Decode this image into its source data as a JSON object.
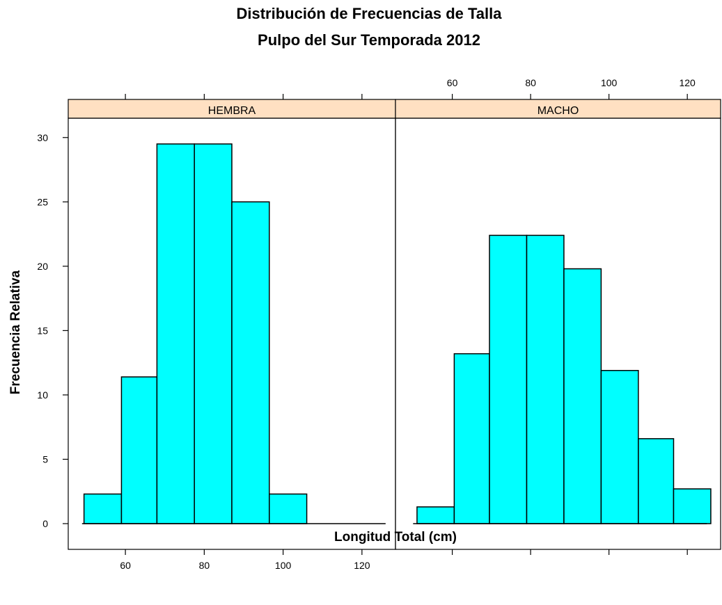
{
  "chart_data": {
    "type": "bar",
    "title": [
      "Distribución de Frecuencias de Talla",
      "Pulpo del Sur Temporada 2012"
    ],
    "xlabel": "Longitud Total (cm)",
    "ylabel": "Frecuencia Relativa",
    "xlim": [
      45.5,
      128.5
    ],
    "ylim": [
      -2,
      31.5
    ],
    "x_ticks": [
      60,
      80,
      100,
      120
    ],
    "y_ticks": [
      0,
      5,
      10,
      15,
      20,
      25,
      30
    ],
    "panels": [
      {
        "strip": "HEMBRA",
        "x_range": [
          49,
          126
        ],
        "bars": [
          {
            "x0": 49.5,
            "x1": 59,
            "value": 2.3
          },
          {
            "x0": 59,
            "x1": 68,
            "value": 11.4
          },
          {
            "x0": 68,
            "x1": 77.5,
            "value": 29.5
          },
          {
            "x0": 77.5,
            "x1": 87,
            "value": 29.5
          },
          {
            "x0": 87,
            "x1": 96.5,
            "value": 25.0
          },
          {
            "x0": 96.5,
            "x1": 106,
            "value": 2.3
          }
        ]
      },
      {
        "strip": "MACHO",
        "x_range": [
          50,
          125
        ],
        "bars": [
          {
            "x0": 51,
            "x1": 60.5,
            "value": 1.3
          },
          {
            "x0": 60.5,
            "x1": 69.5,
            "value": 13.2
          },
          {
            "x0": 69.5,
            "x1": 79,
            "value": 22.4
          },
          {
            "x0": 79,
            "x1": 88.5,
            "value": 22.4
          },
          {
            "x0": 88.5,
            "x1": 98,
            "value": 19.8
          },
          {
            "x0": 98,
            "x1": 107.5,
            "value": 11.9
          },
          {
            "x0": 107.5,
            "x1": 116.5,
            "value": 6.6
          },
          {
            "x0": 116.5,
            "x1": 126,
            "value": 2.7
          }
        ]
      }
    ]
  }
}
